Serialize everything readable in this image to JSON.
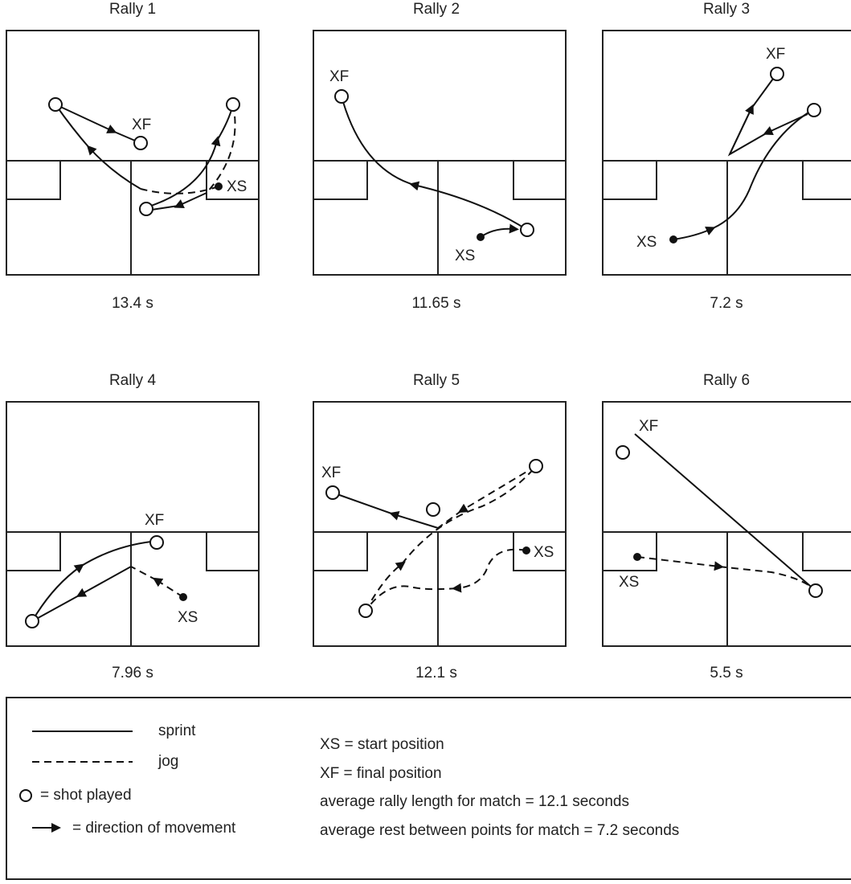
{
  "rallies": [
    {
      "title": "Rally 1",
      "duration": "13.4 s",
      "final_label": "XF",
      "start_label": "XS"
    },
    {
      "title": "Rally 2",
      "duration": "11.65 s",
      "final_label": "XF",
      "start_label": "XS"
    },
    {
      "title": "Rally 3",
      "duration": "7.2 s",
      "final_label": "XF",
      "start_label": "XS"
    },
    {
      "title": "Rally 4",
      "duration": "7.96 s",
      "final_label": "XF",
      "start_label": "XS"
    },
    {
      "title": "Rally 5",
      "duration": "12.1 s",
      "final_label": "XF",
      "start_label": "XS"
    },
    {
      "title": "Rally 6",
      "duration": "5.5 s",
      "final_label": "XF",
      "start_label": "XS"
    }
  ],
  "legend": {
    "items": [
      "sprint",
      "jog",
      "= shot played",
      "= direction of movement"
    ],
    "notes": [
      "XS = start position",
      "XF = final position",
      "average rally length for match = 12.1 seconds",
      "average rest between points for match = 7.2 seconds"
    ]
  }
}
